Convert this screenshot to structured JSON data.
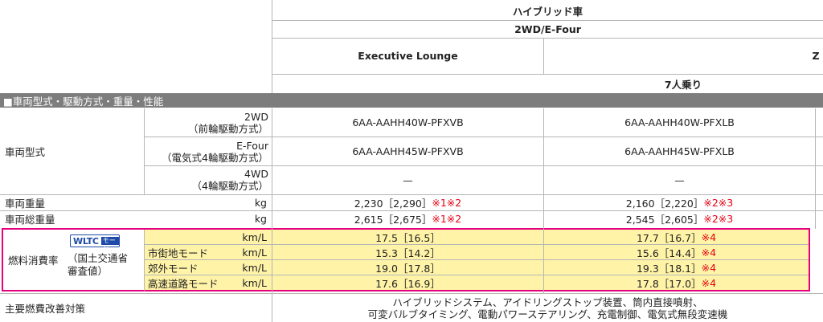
{
  "header": {
    "hybrid": "ハイブリッド車",
    "drive": "2WD/E-Four",
    "grade_exec": "Executive Lounge",
    "grade_z": "Z",
    "seats": "7人乗り"
  },
  "section_title": "■車両型式・駆動方式・重量・性能",
  "vehicle_type": {
    "label": "車両型式",
    "rows": [
      {
        "line1": "2WD",
        "line2": "（前輪駆動方式）",
        "exec": "6AA-AAHH40W-PFXVB",
        "z": "6AA-AAHH40W-PFXLB"
      },
      {
        "line1": "E-Four",
        "line2": "（電気式4輪駆動方式）",
        "exec": "6AA-AAHH45W-PFXVB",
        "z": "6AA-AAHH45W-PFXLB"
      },
      {
        "line1": "4WD",
        "line2": "（4輪駆動方式）",
        "exec": "—",
        "z": "—"
      }
    ]
  },
  "weight": {
    "label": "車両重量",
    "unit": "kg",
    "exec_value": "2,230［2,290］",
    "exec_note": "※1※2",
    "z_value": "2,160［2,220］",
    "z_note": "※2※3"
  },
  "gross_weight": {
    "label": "車両総重量",
    "unit": "kg",
    "exec_value": "2,615［2,675］",
    "exec_note": "※1※2",
    "z_value": "2,545［2,605］",
    "z_note": "※2※3"
  },
  "fuel": {
    "label": "燃料消費率",
    "wltc_main": "WLTC",
    "wltc_mode": "モード",
    "approval_line1": "（国土交通省",
    "approval_line2": "審査値）",
    "rows": [
      {
        "mode": "",
        "unit": "km/L",
        "exec": "17.5［16.5］",
        "z": "17.7［16.7］",
        "z_note": "※4"
      },
      {
        "mode": "市街地モード",
        "unit": "km/L",
        "exec": "15.3［14.2］",
        "z": "15.6［14.4］",
        "z_note": "※4"
      },
      {
        "mode": "郊外モード",
        "unit": "km/L",
        "exec": "19.0［17.8］",
        "z": "19.3［18.1］",
        "z_note": "※4"
      },
      {
        "mode": "高速道路モード",
        "unit": "km/L",
        "exec": "17.6［16.9］",
        "z": "17.8［17.0］",
        "z_note": "※4"
      }
    ]
  },
  "measures": {
    "label": "主要燃費改善対策",
    "line1": "ハイブリッドシステム、アイドリングストップ装置、筒内直接噴射、",
    "line2": "可変バルブタイミング、電動パワーステアリング、充電制御、電気式無段変速機"
  },
  "colors": {
    "highlight_border": "#e4007f",
    "highlight_fill": "#fff3a8",
    "section_band": "#7d7d7d",
    "note_red": "#e60012"
  }
}
